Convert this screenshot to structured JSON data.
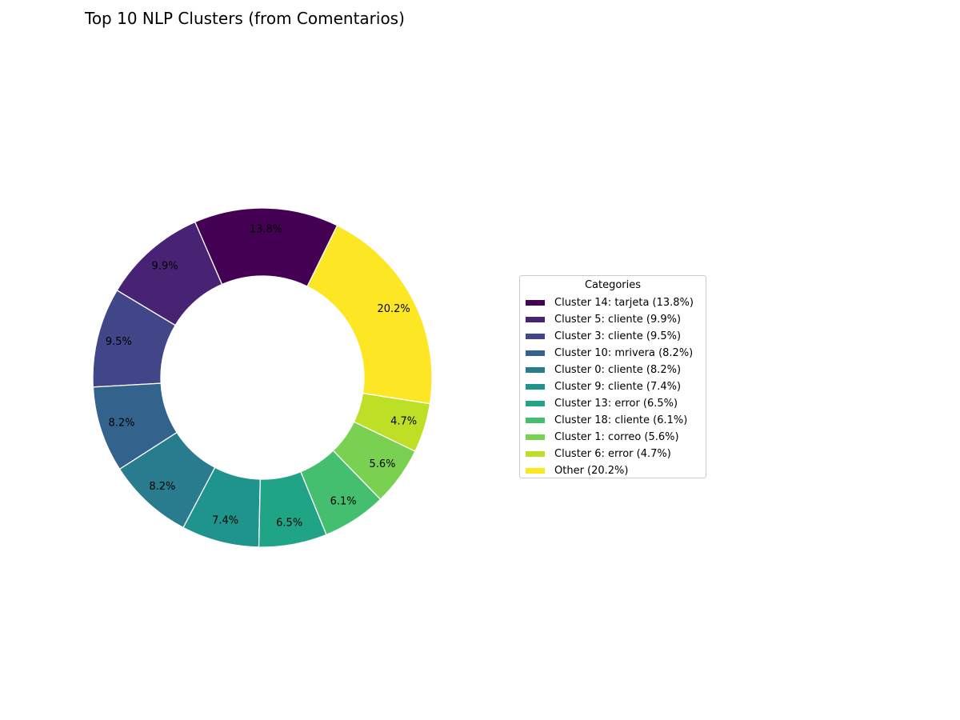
{
  "chart_data": {
    "type": "pie",
    "title": "Top 10 NLP Clusters (from Comentarios)",
    "legend_title": "Categories",
    "legend_placement": "right",
    "start_angle_deg": 63.8,
    "direction": "counterclockwise",
    "slices": [
      {
        "label": "Cluster 14: tarjeta (13.8%)",
        "value": 13.8,
        "pct_label": "13.8%",
        "color": "#440154"
      },
      {
        "label": "Cluster 5: cliente (9.9%)",
        "value": 9.9,
        "pct_label": "9.9%",
        "color": "#482374"
      },
      {
        "label": "Cluster 3: cliente (9.5%)",
        "value": 9.5,
        "pct_label": "9.5%",
        "color": "#404688"
      },
      {
        "label": "Cluster 10: mrivera (8.2%)",
        "value": 8.2,
        "pct_label": "8.2%",
        "color": "#33638d"
      },
      {
        "label": "Cluster 0: cliente (8.2%)",
        "value": 8.2,
        "pct_label": "8.2%",
        "color": "#287c8e"
      },
      {
        "label": "Cluster 9: cliente (7.4%)",
        "value": 7.4,
        "pct_label": "7.4%",
        "color": "#1f948c"
      },
      {
        "label": "Cluster 13: error (6.5%)",
        "value": 6.5,
        "pct_label": "6.5%",
        "color": "#20a486"
      },
      {
        "label": "Cluster 18: cliente (6.1%)",
        "value": 6.1,
        "pct_label": "6.1%",
        "color": "#44bf70"
      },
      {
        "label": "Cluster 1: correo (5.6%)",
        "value": 5.6,
        "pct_label": "5.6%",
        "color": "#7ad151"
      },
      {
        "label": "Cluster 6: error (4.7%)",
        "value": 4.7,
        "pct_label": "4.7%",
        "color": "#bddf26"
      },
      {
        "label": "Other (20.2%)",
        "value": 20.2,
        "pct_label": "20.2%",
        "color": "#fde725"
      }
    ]
  }
}
